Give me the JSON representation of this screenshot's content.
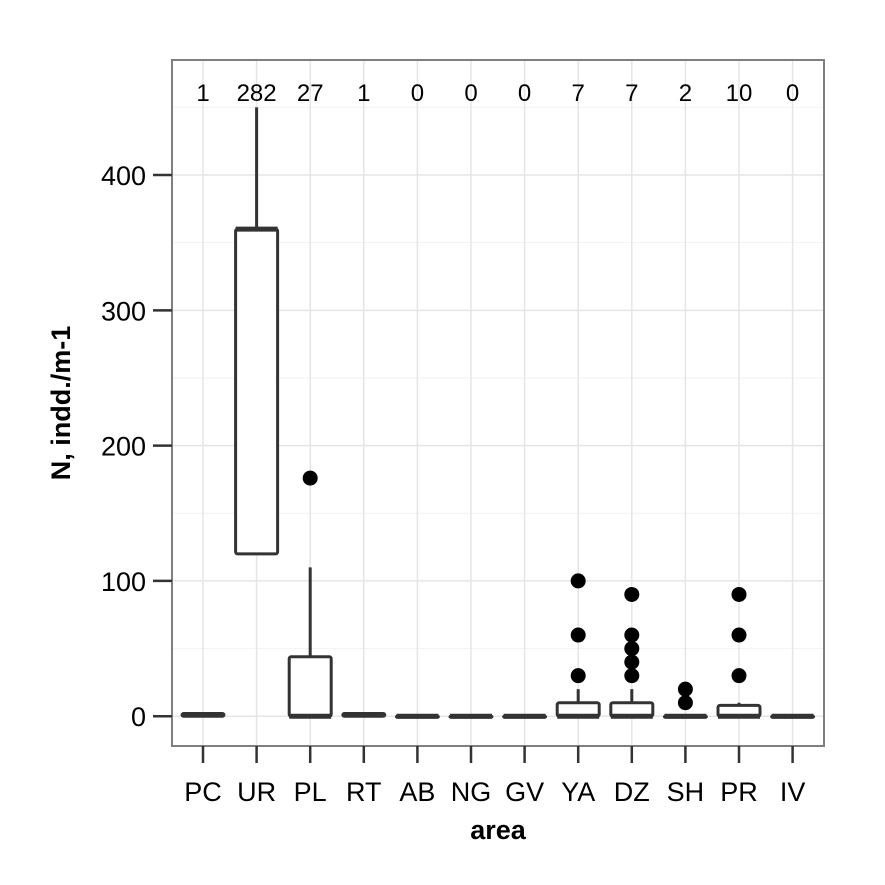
{
  "chart_data": {
    "type": "boxplot",
    "xlabel": "area",
    "ylabel": "N, indd./m-1",
    "ylim": [
      -22,
      485
    ],
    "y_ticks": [
      0,
      100,
      200,
      300,
      400
    ],
    "grid": true,
    "categories": [
      "PC",
      "UR",
      "PL",
      "RT",
      "AB",
      "NG",
      "GV",
      "YA",
      "DZ",
      "SH",
      "PR",
      "IV"
    ],
    "counts": [
      "1",
      "282",
      "27",
      "1",
      "0",
      "0",
      "0",
      "7",
      "7",
      "2",
      "10",
      "0"
    ],
    "boxes": [
      {
        "category": "PC",
        "lower_whisker": 0,
        "q1": 0,
        "median": 1,
        "q3": 2,
        "upper_whisker": 2,
        "outliers": []
      },
      {
        "category": "UR",
        "lower_whisker": 120,
        "q1": 120,
        "median": 360,
        "q3": 360,
        "upper_whisker": 450,
        "outliers": []
      },
      {
        "category": "PL",
        "lower_whisker": 0,
        "q1": 0,
        "median": 0,
        "q3": 44,
        "upper_whisker": 110,
        "outliers": [
          176
        ]
      },
      {
        "category": "RT",
        "lower_whisker": 0,
        "q1": 0,
        "median": 1,
        "q3": 2,
        "upper_whisker": 2,
        "outliers": []
      },
      {
        "category": "AB",
        "lower_whisker": 0,
        "q1": 0,
        "median": 0,
        "q3": 0,
        "upper_whisker": 0,
        "outliers": []
      },
      {
        "category": "NG",
        "lower_whisker": 0,
        "q1": 0,
        "median": 0,
        "q3": 0,
        "upper_whisker": 0,
        "outliers": []
      },
      {
        "category": "GV",
        "lower_whisker": 0,
        "q1": 0,
        "median": 0,
        "q3": 0,
        "upper_whisker": 0,
        "outliers": []
      },
      {
        "category": "YA",
        "lower_whisker": 0,
        "q1": 0,
        "median": 0,
        "q3": 10,
        "upper_whisker": 20,
        "outliers": [
          30,
          60,
          100
        ]
      },
      {
        "category": "DZ",
        "lower_whisker": 0,
        "q1": 0,
        "median": 0,
        "q3": 10,
        "upper_whisker": 20,
        "outliers": [
          30,
          40,
          50,
          60,
          90
        ]
      },
      {
        "category": "SH",
        "lower_whisker": 0,
        "q1": 0,
        "median": 0,
        "q3": 0,
        "upper_whisker": 0,
        "outliers": [
          10,
          20
        ]
      },
      {
        "category": "PR",
        "lower_whisker": 0,
        "q1": 0,
        "median": 0,
        "q3": 8,
        "upper_whisker": 10,
        "outliers": [
          30,
          60,
          90
        ]
      },
      {
        "category": "IV",
        "lower_whisker": 0,
        "q1": 0,
        "median": 0,
        "q3": 0,
        "upper_whisker": 0,
        "outliers": []
      }
    ]
  },
  "colors": {
    "panel_border": "#7f7f7f",
    "grid_major": "#e5e5e5",
    "grid_minor": "#f2f2f2",
    "box_stroke": "#333333",
    "outlier_fill": "#000000",
    "tick_mark": "#333333"
  }
}
